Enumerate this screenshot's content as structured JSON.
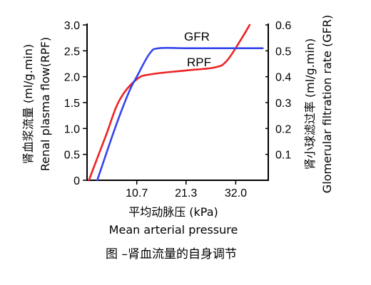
{
  "chart_data": {
    "type": "line",
    "xlabel": "平均动脉压 (kPa)",
    "xlabel_en": "Mean arterial pressure",
    "ylabel_left": "肾血浆流量 (ml/g.min)",
    "ylabel_left_en": "Renal plasma flow(RPF)",
    "ylabel_right": "肾小球滤过率 (ml/g.min)",
    "ylabel_right_en": "Glomerular filtration rate (GFR)",
    "caption": "图 –肾血流量的自身调节",
    "x_ticks": [
      {
        "value": 10.7,
        "label": "10.7"
      },
      {
        "value": 21.3,
        "label": "21.3"
      },
      {
        "value": 32.0,
        "label": "32.0"
      }
    ],
    "xlim": [
      0,
      39
    ],
    "ylim_left": [
      0,
      3.0
    ],
    "ylim_right": [
      0,
      0.6
    ],
    "left_ticks": [
      "0",
      "0.5",
      "1.0",
      "1.5",
      "2.0",
      "2.5",
      "3.0"
    ],
    "right_ticks": [
      "0.1",
      "0.2",
      "0.3",
      "0.4",
      "0.5",
      "0.6"
    ],
    "series": [
      {
        "name": "GFR",
        "axis": "right",
        "color": "#3344ee",
        "points": [
          [
            2.2,
            0.0
          ],
          [
            6.0,
            0.2
          ],
          [
            9.0,
            0.34
          ],
          [
            10.7,
            0.4
          ],
          [
            13.5,
            0.49
          ],
          [
            15.5,
            0.51
          ],
          [
            21.3,
            0.51
          ],
          [
            27.0,
            0.51
          ],
          [
            32.0,
            0.51
          ],
          [
            34.0,
            0.51
          ],
          [
            37.8,
            0.51
          ]
        ]
      },
      {
        "name": "RPF",
        "axis": "left",
        "color": "#ee2222",
        "points": [
          [
            0.4,
            0.0
          ],
          [
            4.0,
            0.85
          ],
          [
            7.0,
            1.55
          ],
          [
            10.7,
            1.95
          ],
          [
            14.0,
            2.05
          ],
          [
            21.3,
            2.12
          ],
          [
            27.5,
            2.18
          ],
          [
            30.0,
            2.3
          ],
          [
            33.0,
            2.7
          ],
          [
            35.0,
            3.0
          ]
        ]
      }
    ]
  }
}
